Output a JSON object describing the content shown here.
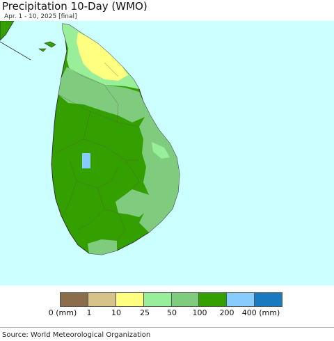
{
  "header": {
    "title": "Precipitation 10-Day (WMO)",
    "subtitle": "Apr. 1 - 10, 2025 [final]"
  },
  "map": {
    "region": "Sri Lanka",
    "sea_color": "#ccffff",
    "outline_color": "#333333",
    "zones": [
      {
        "bin": "100-200",
        "color": "#33a000"
      },
      {
        "bin": "50-100",
        "color": "#7fcc7f"
      },
      {
        "bin": "25-50",
        "color": "#99ee99"
      },
      {
        "bin": "10-25",
        "color": "#ffff80"
      },
      {
        "bin": "200-400",
        "color": "#88ccff"
      }
    ]
  },
  "legend": {
    "colors": [
      "#8a6e4b",
      "#d6c38a",
      "#ffff80",
      "#99ee99",
      "#7fcc7f",
      "#33a000",
      "#88ccff",
      "#1a7abf"
    ],
    "labels": [
      "0 (mm)",
      "1",
      "10",
      "25",
      "50",
      "100",
      "200",
      "400 (mm)"
    ]
  },
  "footer": {
    "source": "Source: World Meteorological Organization"
  }
}
